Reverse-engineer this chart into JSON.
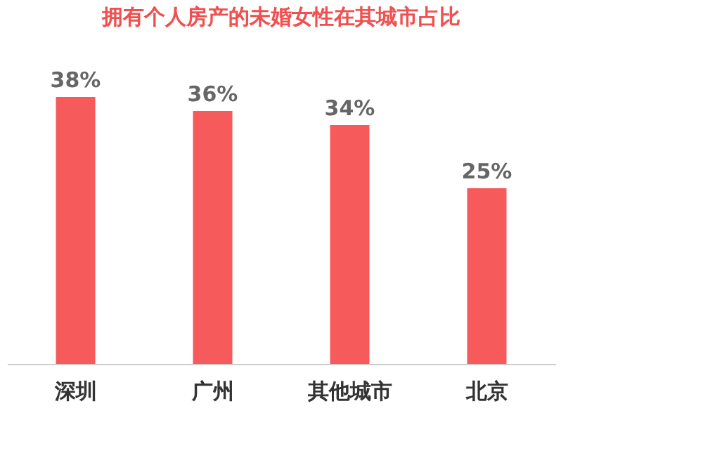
{
  "chart_data": {
    "type": "bar",
    "title": "拥有个人房产的未婚女性在其城市占比",
    "categories": [
      "深圳",
      "广州",
      "其他城市",
      "北京"
    ],
    "values": [
      38,
      36,
      34,
      25
    ],
    "color": "#f75a5a",
    "value_labels": [
      "38%",
      "36%",
      "34%",
      "25%"
    ],
    "grid": false,
    "tick_labels": "x"
  }
}
